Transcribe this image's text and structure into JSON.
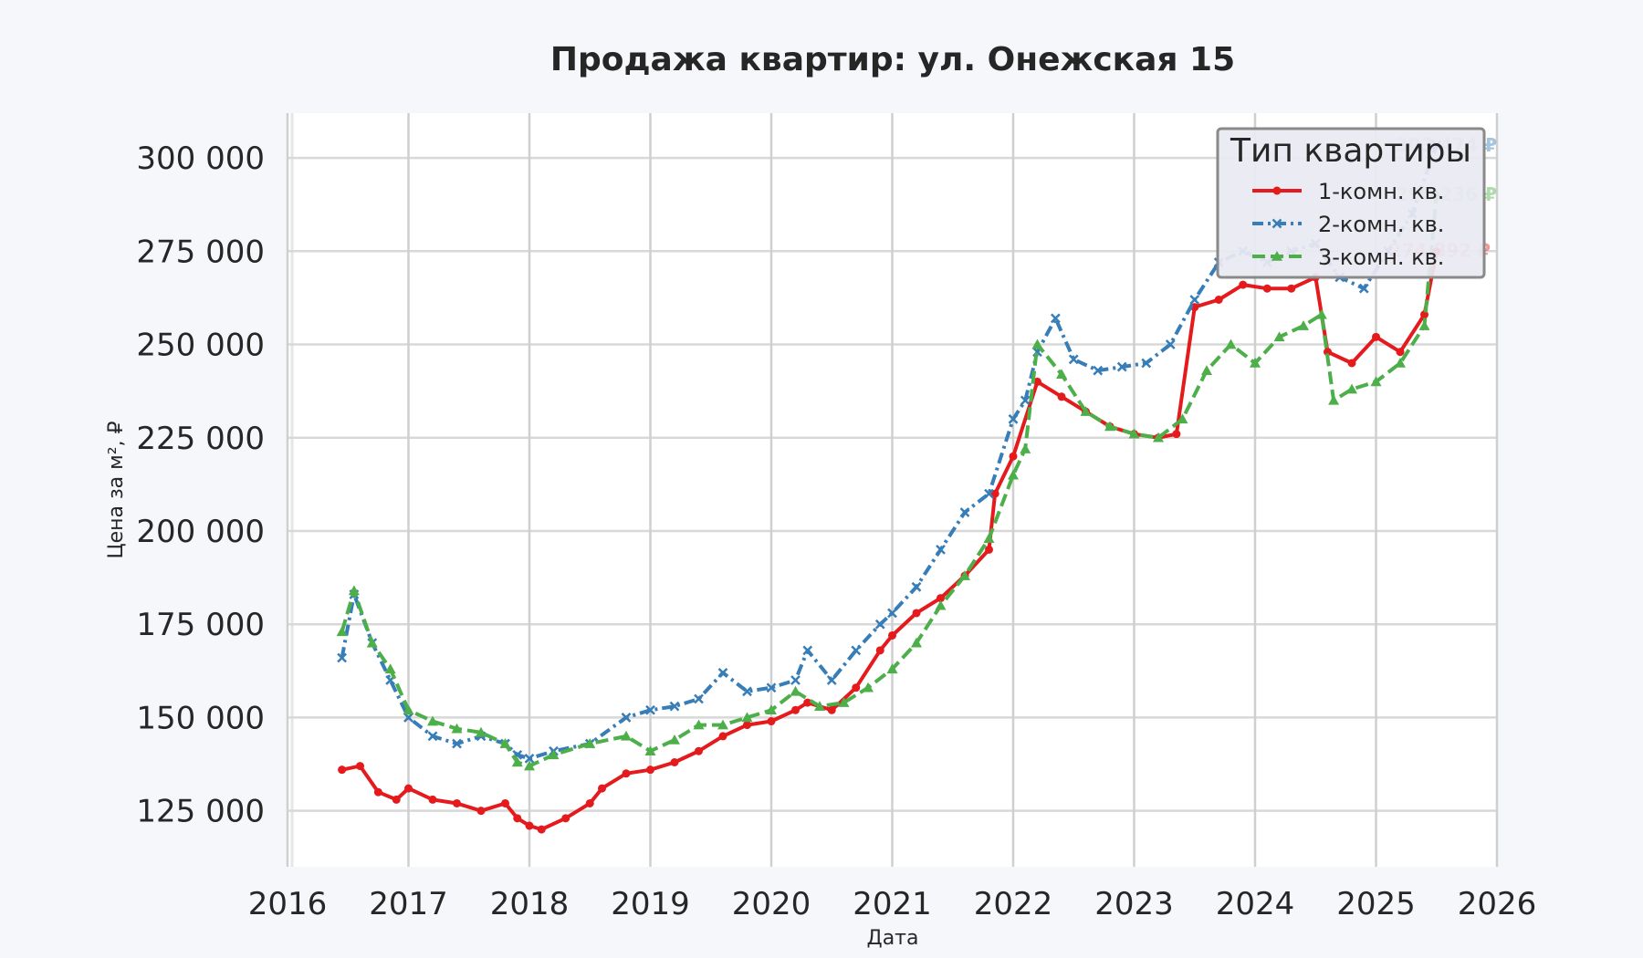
{
  "chart_data": {
    "type": "line",
    "title": "Продажа квартир: ул. Онежская 15",
    "xlabel": "Дата",
    "ylabel": "Цена за м², ₽",
    "xlim": [
      2016,
      2026
    ],
    "ylim": [
      110000,
      312000
    ],
    "x_ticks": [
      2016,
      2017,
      2018,
      2019,
      2020,
      2021,
      2022,
      2023,
      2024,
      2025,
      2026
    ],
    "y_ticks": [
      125000,
      150000,
      175000,
      200000,
      225000,
      250000,
      275000,
      300000
    ],
    "x_tick_labels": [
      "2016",
      "2017",
      "2018",
      "2019",
      "2020",
      "2021",
      "2022",
      "2023",
      "2024",
      "2025",
      "2026"
    ],
    "y_tick_labels": [
      "125 000",
      "150 000",
      "175 000",
      "200 000",
      "225 000",
      "250 000",
      "275 000",
      "300 000"
    ],
    "grid": true,
    "legend": {
      "title": "Тип квартиры",
      "position": "top-right"
    },
    "series": [
      {
        "name": "1-комн. кв.",
        "color": "#e41a1c",
        "marker": "circle",
        "dash": "solid",
        "end_label": "274 892 ₽",
        "x": [
          2016.45,
          2016.6,
          2016.75,
          2016.9,
          2017.0,
          2017.2,
          2017.4,
          2017.6,
          2017.8,
          2017.9,
          2018.0,
          2018.1,
          2018.3,
          2018.5,
          2018.6,
          2018.8,
          2019.0,
          2019.2,
          2019.4,
          2019.6,
          2019.8,
          2020.0,
          2020.2,
          2020.3,
          2020.5,
          2020.7,
          2020.9,
          2021.0,
          2021.2,
          2021.4,
          2021.6,
          2021.8,
          2021.85,
          2022.0,
          2022.2,
          2022.4,
          2022.6,
          2022.8,
          2023.0,
          2023.2,
          2023.35,
          2023.5,
          2023.7,
          2023.9,
          2024.1,
          2024.3,
          2024.5,
          2024.6,
          2024.8,
          2025.0,
          2025.2,
          2025.4,
          2025.5
        ],
        "y": [
          136000,
          137000,
          130000,
          128000,
          131000,
          128000,
          127000,
          125000,
          127000,
          123000,
          121000,
          120000,
          123000,
          127000,
          131000,
          135000,
          136000,
          138000,
          141000,
          145000,
          148000,
          149000,
          152000,
          154000,
          152000,
          158000,
          168000,
          172000,
          178000,
          182000,
          188000,
          195000,
          210000,
          220000,
          240000,
          236000,
          232000,
          228000,
          226000,
          225000,
          226000,
          260000,
          262000,
          266000,
          265000,
          265000,
          268000,
          248000,
          245000,
          252000,
          248000,
          258000,
          274892
        ]
      },
      {
        "name": "2-комн. кв.",
        "color": "#377eb8",
        "marker": "x",
        "dash": "dashdot",
        "end_label": "303 474 ₽",
        "x": [
          2016.45,
          2016.55,
          2016.7,
          2016.85,
          2017.0,
          2017.2,
          2017.4,
          2017.6,
          2017.8,
          2017.9,
          2018.0,
          2018.2,
          2018.5,
          2018.8,
          2019.0,
          2019.2,
          2019.4,
          2019.6,
          2019.8,
          2020.0,
          2020.2,
          2020.3,
          2020.5,
          2020.7,
          2020.9,
          2021.0,
          2021.2,
          2021.4,
          2021.6,
          2021.8,
          2022.0,
          2022.1,
          2022.2,
          2022.35,
          2022.5,
          2022.7,
          2022.9,
          2023.1,
          2023.3,
          2023.5,
          2023.7,
          2023.9,
          2024.1,
          2024.3,
          2024.5,
          2024.7,
          2024.9,
          2025.1,
          2025.3,
          2025.5
        ],
        "y": [
          166000,
          183000,
          170000,
          160000,
          150000,
          145000,
          143000,
          145000,
          143000,
          140000,
          139000,
          141000,
          143000,
          150000,
          152000,
          153000,
          155000,
          162000,
          157000,
          158000,
          160000,
          168000,
          160000,
          168000,
          175000,
          178000,
          185000,
          195000,
          205000,
          210000,
          230000,
          235000,
          248000,
          257000,
          246000,
          243000,
          244000,
          245000,
          250000,
          262000,
          272000,
          275000,
          272000,
          275000,
          277000,
          268000,
          265000,
          275000,
          285000,
          303474
        ]
      },
      {
        "name": "3-комн. кв.",
        "color": "#4daf4a",
        "marker": "triangle",
        "dash": "dashed",
        "end_label": "290 236 ₽",
        "x": [
          2016.45,
          2016.55,
          2016.7,
          2016.85,
          2017.0,
          2017.2,
          2017.4,
          2017.6,
          2017.8,
          2017.9,
          2018.0,
          2018.2,
          2018.5,
          2018.8,
          2019.0,
          2019.2,
          2019.4,
          2019.6,
          2019.8,
          2020.0,
          2020.2,
          2020.4,
          2020.6,
          2020.8,
          2021.0,
          2021.2,
          2021.4,
          2021.6,
          2021.8,
          2022.0,
          2022.1,
          2022.2,
          2022.4,
          2022.6,
          2022.8,
          2023.0,
          2023.2,
          2023.4,
          2023.6,
          2023.8,
          2024.0,
          2024.2,
          2024.4,
          2024.55,
          2024.65,
          2024.8,
          2025.0,
          2025.2,
          2025.4,
          2025.5
        ],
        "y": [
          173000,
          184000,
          170000,
          163000,
          152000,
          149000,
          147000,
          146000,
          143000,
          138000,
          137000,
          140000,
          143000,
          145000,
          141000,
          144000,
          148000,
          148000,
          150000,
          152000,
          157000,
          153000,
          154000,
          158000,
          163000,
          170000,
          180000,
          188000,
          198000,
          215000,
          222000,
          250000,
          242000,
          232000,
          228000,
          226000,
          225000,
          230000,
          243000,
          250000,
          245000,
          252000,
          255000,
          258000,
          235000,
          238000,
          240000,
          245000,
          255000,
          290236
        ]
      }
    ]
  }
}
